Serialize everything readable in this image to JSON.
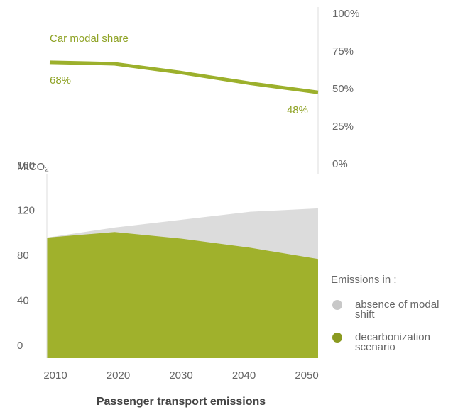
{
  "chart_data": [
    {
      "type": "line",
      "title": "Car modal share",
      "series": [
        {
          "name": "Car modal share",
          "color": "#9cb02c",
          "values": [
            68,
            67,
            61,
            54,
            48
          ],
          "value_labels": [
            "68%",
            null,
            null,
            null,
            "48%"
          ]
        }
      ],
      "ylim": [
        0,
        100
      ],
      "yticks": [
        {
          "value": 0,
          "label": "0%"
        },
        {
          "value": 25,
          "label": "25%"
        },
        {
          "value": 50,
          "label": "50%"
        },
        {
          "value": 75,
          "label": "75%"
        },
        {
          "value": 100,
          "label": "100%"
        }
      ]
    },
    {
      "type": "area",
      "title": "Passenger transport emissions",
      "ylabel": "MtCO₂",
      "categories": [
        "2010",
        "2020",
        "2030",
        "2040",
        "2050"
      ],
      "legend_title": "Emissions in :",
      "series": [
        {
          "name": "absence of modal shift",
          "color": "#dcdcdc",
          "values": [
            107,
            116,
            123,
            130,
            133
          ]
        },
        {
          "name": "decarbonization scenario",
          "color": "#a0b12c",
          "values": [
            107,
            112,
            106,
            98,
            88
          ]
        }
      ],
      "ylim": [
        0,
        160
      ],
      "yticks": [
        0,
        40,
        80,
        120,
        160
      ]
    }
  ]
}
